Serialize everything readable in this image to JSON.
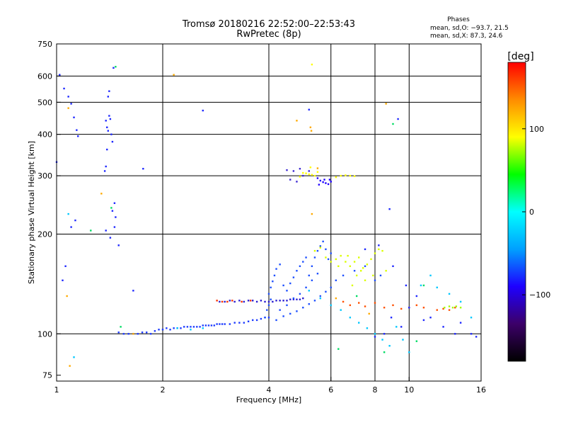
{
  "chart_data": {
    "type": "scatter",
    "title": "Tromsø 20180216 22:52:00–22:53:43",
    "subtitle": "RwPretec (8p)",
    "xlabel": "Frequency [MHz]",
    "ylabel": "Stationary phase Virtual Height [km]",
    "x_scale": "log",
    "y_scale": "log",
    "xlim": [
      1,
      16
    ],
    "ylim": [
      72,
      750
    ],
    "x_ticks": [
      1,
      2,
      4,
      6,
      8,
      10,
      16
    ],
    "x_tick_labels": [
      "1",
      "2",
      "4",
      "6",
      "8",
      "10",
      "16"
    ],
    "x_grid": [
      2,
      4,
      6,
      8,
      10
    ],
    "y_ticks": [
      75,
      100,
      200,
      300,
      400,
      500,
      600,
      750
    ],
    "y_tick_labels": [
      "75",
      "100",
      "200",
      "300",
      "400",
      "500",
      "600",
      "750"
    ],
    "y_grid": [
      100,
      200,
      300,
      400,
      500,
      600
    ],
    "grid": true,
    "phase_stats": {
      "heading": "Phases",
      "line_o": "mean, sd,O: −93.7, 21.5",
      "line_x": "mean, sd,X:  87.3, 24.6"
    },
    "colorbar": {
      "label": "[deg]",
      "range": [
        -180,
        180
      ],
      "ticks": [
        100,
        0,
        -100
      ],
      "tick_labels": [
        "100",
        "0",
        "−100"
      ],
      "colors": [
        "#000000",
        "#3c0068",
        "#1e00ff",
        "#00a0ff",
        "#00ffff",
        "#00ff00",
        "#ffff00",
        "#ff8c00",
        "#ff0000"
      ]
    },
    "series": [
      {
        "color": "#1e3cff",
        "points": [
          [
            1.5,
            101
          ],
          [
            1.55,
            100
          ],
          [
            1.6,
            100
          ],
          [
            1.65,
            100
          ],
          [
            1.7,
            100
          ],
          [
            1.75,
            101
          ],
          [
            1.8,
            101
          ],
          [
            1.85,
            100
          ],
          [
            1.9,
            102
          ],
          [
            1.95,
            103
          ],
          [
            2.0,
            103
          ],
          [
            2.05,
            104
          ],
          [
            2.1,
            103
          ],
          [
            2.15,
            104
          ],
          [
            2.2,
            104
          ],
          [
            2.25,
            104
          ],
          [
            2.3,
            105
          ],
          [
            2.35,
            105
          ],
          [
            2.4,
            105
          ],
          [
            2.45,
            105
          ],
          [
            2.5,
            105
          ],
          [
            2.55,
            105
          ],
          [
            2.6,
            106
          ],
          [
            2.65,
            106
          ],
          [
            2.7,
            106
          ],
          [
            2.75,
            106
          ],
          [
            2.8,
            106
          ],
          [
            2.85,
            107
          ],
          [
            2.9,
            107
          ],
          [
            2.95,
            107
          ],
          [
            3.0,
            107
          ],
          [
            3.1,
            107
          ],
          [
            3.2,
            108
          ],
          [
            3.3,
            108
          ],
          [
            3.4,
            108
          ],
          [
            3.5,
            109
          ],
          [
            3.6,
            110
          ],
          [
            3.7,
            110
          ],
          [
            3.8,
            111
          ],
          [
            3.9,
            112
          ],
          [
            4.0,
            112
          ]
        ]
      },
      {
        "color": "#2a1ed2",
        "points": [
          [
            2.9,
            125
          ],
          [
            3.0,
            125
          ],
          [
            3.1,
            126
          ],
          [
            3.2,
            125
          ],
          [
            3.3,
            126
          ],
          [
            3.4,
            125
          ],
          [
            3.5,
            126
          ],
          [
            3.6,
            126
          ],
          [
            3.7,
            125
          ],
          [
            3.8,
            126
          ],
          [
            3.9,
            125
          ],
          [
            4.0,
            125
          ],
          [
            4.1,
            125
          ],
          [
            4.2,
            126
          ],
          [
            4.3,
            126
          ],
          [
            4.4,
            126
          ],
          [
            4.5,
            126
          ],
          [
            4.6,
            127
          ],
          [
            4.7,
            127
          ],
          [
            4.8,
            127
          ],
          [
            4.9,
            127
          ],
          [
            5.0,
            128
          ]
        ]
      },
      {
        "color": "#ff3200",
        "points": [
          [
            2.85,
            126
          ],
          [
            2.95,
            125
          ],
          [
            3.05,
            125
          ],
          [
            3.15,
            126
          ],
          [
            3.35,
            125
          ],
          [
            3.55,
            126
          ]
        ]
      },
      {
        "color": "#1e50ff",
        "points": [
          [
            3.9,
            112
          ],
          [
            3.95,
            118
          ],
          [
            4.0,
            122
          ],
          [
            4.05,
            127
          ],
          [
            4.0,
            132
          ],
          [
            4.05,
            138
          ],
          [
            4.1,
            144
          ],
          [
            4.15,
            150
          ],
          [
            4.2,
            157
          ],
          [
            4.3,
            162
          ],
          [
            4.4,
            140
          ],
          [
            4.5,
            135
          ],
          [
            4.6,
            142
          ],
          [
            4.7,
            148
          ],
          [
            4.8,
            155
          ],
          [
            4.9,
            160
          ],
          [
            5.0,
            165
          ],
          [
            5.1,
            170
          ],
          [
            5.2,
            150
          ],
          [
            5.3,
            160
          ],
          [
            5.4,
            170
          ],
          [
            5.5,
            178
          ],
          [
            5.6,
            184
          ],
          [
            5.7,
            190
          ],
          [
            5.8,
            180
          ],
          [
            5.9,
            168
          ],
          [
            6.0,
            175
          ],
          [
            4.3,
            118
          ],
          [
            4.5,
            122
          ],
          [
            4.7,
            128
          ],
          [
            4.9,
            132
          ],
          [
            5.1,
            138
          ],
          [
            5.3,
            145
          ],
          [
            5.5,
            152
          ],
          [
            4.2,
            110
          ],
          [
            4.4,
            113
          ],
          [
            4.6,
            115
          ],
          [
            4.8,
            117
          ],
          [
            5.0,
            120
          ],
          [
            5.2,
            123
          ],
          [
            5.4,
            126
          ],
          [
            5.6,
            130
          ],
          [
            5.8,
            134
          ],
          [
            6.0,
            138
          ],
          [
            6.2,
            145
          ],
          [
            6.5,
            150
          ],
          [
            7.0,
            155
          ],
          [
            7.5,
            160
          ],
          [
            8.0,
            145
          ],
          [
            8.3,
            150
          ]
        ]
      },
      {
        "color": "#dcff00",
        "points": [
          [
            5.4,
            178
          ],
          [
            5.6,
            182
          ],
          [
            5.8,
            170
          ],
          [
            6.0,
            165
          ],
          [
            6.2,
            168
          ],
          [
            6.4,
            172
          ],
          [
            6.6,
            165
          ],
          [
            6.8,
            160
          ],
          [
            7.0,
            165
          ],
          [
            7.2,
            170
          ],
          [
            7.4,
            158
          ],
          [
            7.6,
            162
          ],
          [
            7.8,
            168
          ],
          [
            8.0,
            175
          ],
          [
            8.2,
            180
          ],
          [
            8.4,
            178
          ],
          [
            6.3,
            160
          ],
          [
            6.7,
            172
          ],
          [
            7.1,
            150
          ],
          [
            7.3,
            155
          ],
          [
            7.9,
            150
          ],
          [
            8.6,
            155
          ],
          [
            6.9,
            140
          ],
          [
            7.5,
            145
          ]
        ]
      },
      {
        "color": "#ffff00",
        "points": [
          [
            5.0,
            306
          ],
          [
            5.1,
            305
          ],
          [
            5.2,
            303
          ],
          [
            5.3,
            302
          ],
          [
            5.4,
            300
          ],
          [
            4.9,
            298
          ],
          [
            6.4,
            300
          ],
          [
            6.6,
            301
          ],
          [
            6.8,
            300
          ],
          [
            7.0,
            299
          ],
          [
            6.2,
            297
          ],
          [
            5.3,
            650
          ],
          [
            5.25,
            318
          ],
          [
            5.5,
            308
          ]
        ]
      },
      {
        "color": "#1e00ff",
        "points": [
          [
            5.5,
            295
          ],
          [
            5.6,
            290
          ],
          [
            5.7,
            287
          ],
          [
            5.8,
            285
          ],
          [
            5.9,
            283
          ],
          [
            6.0,
            288
          ],
          [
            5.55,
            282
          ],
          [
            5.75,
            292
          ],
          [
            5.95,
            292
          ]
        ]
      },
      {
        "color": "#3c28d2",
        "points": [
          [
            4.5,
            312
          ],
          [
            4.7,
            310
          ],
          [
            4.9,
            315
          ],
          [
            5.2,
            310
          ],
          [
            4.6,
            292
          ],
          [
            4.8,
            288
          ],
          [
            5.0,
            300
          ]
        ]
      },
      {
        "color": "#ff5000",
        "points": [
          [
            6.5,
            125
          ],
          [
            6.8,
            122
          ],
          [
            7.2,
            124
          ],
          [
            7.5,
            121
          ],
          [
            8.0,
            124
          ],
          [
            8.5,
            120
          ],
          [
            9.0,
            122
          ],
          [
            9.5,
            119
          ],
          [
            10.0,
            120
          ],
          [
            10.5,
            122
          ],
          [
            11.0,
            120
          ],
          [
            12.0,
            118
          ],
          [
            12.5,
            119
          ],
          [
            13.0,
            118
          ],
          [
            13.5,
            120
          ]
        ]
      },
      {
        "color": "#a0ff00",
        "points": [
          [
            13.0,
            121
          ],
          [
            13.3,
            120
          ],
          [
            13.6,
            121
          ],
          [
            14.0,
            120
          ],
          [
            12.6,
            120
          ]
        ]
      },
      {
        "color": "#1e28ff",
        "points": [
          [
            1.0,
            330
          ],
          [
            1.02,
            605
          ],
          [
            1.05,
            550
          ],
          [
            1.08,
            520
          ],
          [
            1.1,
            495
          ],
          [
            1.12,
            450
          ],
          [
            1.14,
            412
          ],
          [
            1.15,
            395
          ],
          [
            1.38,
            440
          ],
          [
            1.39,
            420
          ],
          [
            1.4,
            410
          ],
          [
            1.41,
            455
          ],
          [
            1.42,
            445
          ],
          [
            1.43,
            400
          ],
          [
            1.44,
            380
          ],
          [
            1.39,
            360
          ],
          [
            1.38,
            320
          ],
          [
            1.37,
            310
          ],
          [
            1.41,
            540
          ],
          [
            1.4,
            520
          ],
          [
            1.45,
            635
          ],
          [
            1.46,
            248
          ],
          [
            1.44,
            235
          ],
          [
            1.47,
            225
          ],
          [
            1.46,
            210
          ],
          [
            1.38,
            205
          ],
          [
            1.42,
            195
          ],
          [
            1.5,
            185
          ],
          [
            1.04,
            145
          ],
          [
            1.06,
            160
          ],
          [
            1.65,
            135
          ],
          [
            1.1,
            210
          ],
          [
            1.13,
            220
          ],
          [
            1.76,
            315
          ],
          [
            2.6,
            472
          ],
          [
            9.3,
            445
          ],
          [
            8.8,
            238
          ],
          [
            5.2,
            475
          ],
          [
            7.5,
            180
          ],
          [
            8.2,
            185
          ],
          [
            9.0,
            160
          ],
          [
            9.8,
            140
          ],
          [
            10.5,
            130
          ],
          [
            11.0,
            110
          ],
          [
            11.5,
            112
          ],
          [
            12.5,
            105
          ],
          [
            13.5,
            100
          ],
          [
            14.0,
            108
          ],
          [
            15.0,
            100
          ],
          [
            15.5,
            98
          ],
          [
            10.0,
            120
          ],
          [
            9.5,
            105
          ],
          [
            8.9,
            112
          ],
          [
            8.5,
            100
          ],
          [
            8.0,
            98
          ]
        ]
      },
      {
        "color": "#ffaa00",
        "points": [
          [
            1.08,
            480
          ],
          [
            1.34,
            265
          ],
          [
            1.07,
            130
          ],
          [
            1.09,
            80
          ],
          [
            2.15,
            605
          ],
          [
            1.65,
            100
          ],
          [
            8.6,
            495
          ],
          [
            5.25,
            420
          ],
          [
            5.28,
            410
          ],
          [
            5.3,
            230
          ],
          [
            4.8,
            440
          ],
          [
            5.5,
            316
          ],
          [
            6.2,
            128
          ],
          [
            7.7,
            115
          ]
        ]
      },
      {
        "color": "#00dc64",
        "points": [
          [
            1.47,
            640
          ],
          [
            1.25,
            205
          ],
          [
            1.43,
            240
          ],
          [
            1.52,
            105
          ],
          [
            9.0,
            430
          ],
          [
            6.3,
            90
          ],
          [
            8.5,
            88
          ],
          [
            10.5,
            95
          ],
          [
            7.1,
            130
          ],
          [
            11.0,
            140
          ]
        ]
      },
      {
        "color": "#00c8ff",
        "points": [
          [
            1.08,
            230
          ],
          [
            1.12,
            85
          ],
          [
            2.2,
            104
          ],
          [
            2.4,
            103
          ],
          [
            2.6,
            104
          ],
          [
            5.2,
            135
          ],
          [
            5.6,
            128
          ],
          [
            6.0,
            122
          ],
          [
            6.4,
            118
          ],
          [
            6.8,
            112
          ],
          [
            7.2,
            108
          ],
          [
            7.6,
            104
          ],
          [
            8.0,
            100
          ],
          [
            8.4,
            96
          ],
          [
            8.8,
            92
          ],
          [
            9.2,
            105
          ],
          [
            9.6,
            96
          ],
          [
            10.0,
            88
          ],
          [
            10.8,
            140
          ],
          [
            11.5,
            150
          ],
          [
            12.0,
            138
          ],
          [
            13.0,
            132
          ],
          [
            14.0,
            125
          ],
          [
            15.0,
            112
          ]
        ]
      }
    ]
  }
}
